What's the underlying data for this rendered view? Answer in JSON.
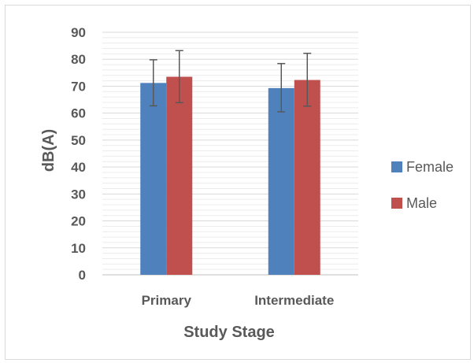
{
  "chart_data": {
    "type": "bar",
    "title": "",
    "xlabel": "Study Stage",
    "ylabel": "dB(A)",
    "categories": [
      "Primary",
      "Intermediate"
    ],
    "series": [
      {
        "name": "Female",
        "color": "#4f81bd",
        "values": [
          71.2,
          69.3
        ],
        "error_low": [
          62.7,
          60.5
        ],
        "error_high": [
          79.8,
          78.4
        ]
      },
      {
        "name": "Male",
        "color": "#c0504d",
        "values": [
          73.5,
          72.3
        ],
        "error_low": [
          63.9,
          62.6
        ],
        "error_high": [
          83.2,
          82.2
        ]
      }
    ],
    "ylim": [
      0,
      90
    ],
    "yticks": [
      0,
      10,
      20,
      30,
      40,
      50,
      60,
      70,
      80,
      90
    ],
    "minor_gridline_step": 2,
    "grid": true,
    "legend_position": "right",
    "error_bars": true
  }
}
